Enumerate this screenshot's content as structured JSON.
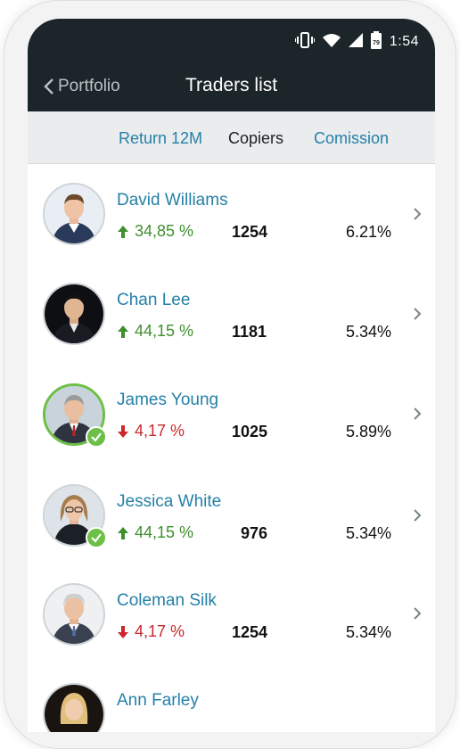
{
  "status_bar": {
    "time": "1:54",
    "battery_level": "79",
    "icons": [
      "vibrate-icon",
      "wifi-icon",
      "signal-icon",
      "battery-icon"
    ]
  },
  "nav": {
    "back_label": "Portfolio",
    "title": "Traders list"
  },
  "columns": {
    "return": "Return 12M",
    "copiers": "Copiers",
    "commission": "Comission"
  },
  "traders": [
    {
      "name": "David Williams",
      "return": "34,85 %",
      "trend": "up",
      "copiers": "1254",
      "commission": "6.21%",
      "verified": false
    },
    {
      "name": "Chan Lee",
      "return": "44,15 %",
      "trend": "up",
      "copiers": "1181",
      "commission": "5.34%",
      "verified": false
    },
    {
      "name": "James Young",
      "return": "4,17 %",
      "trend": "down",
      "copiers": "1025",
      "commission": "5.89%",
      "verified": true
    },
    {
      "name": "Jessica White",
      "return": "44,15 %",
      "trend": "up",
      "copiers": "976",
      "commission": "5.34%",
      "verified": true
    },
    {
      "name": "Coleman Silk",
      "return": "4,17 %",
      "trend": "down",
      "copiers": "1254",
      "commission": "5.34%",
      "verified": false
    },
    {
      "name": "Ann Farley",
      "return": "",
      "trend": "",
      "copiers": "",
      "commission": "",
      "verified": false
    }
  ],
  "colors": {
    "appbar": "#1c262a",
    "accent": "#2580a8",
    "up": "#3f8f2e",
    "down": "#c9282d",
    "verified": "#6cbf47"
  }
}
